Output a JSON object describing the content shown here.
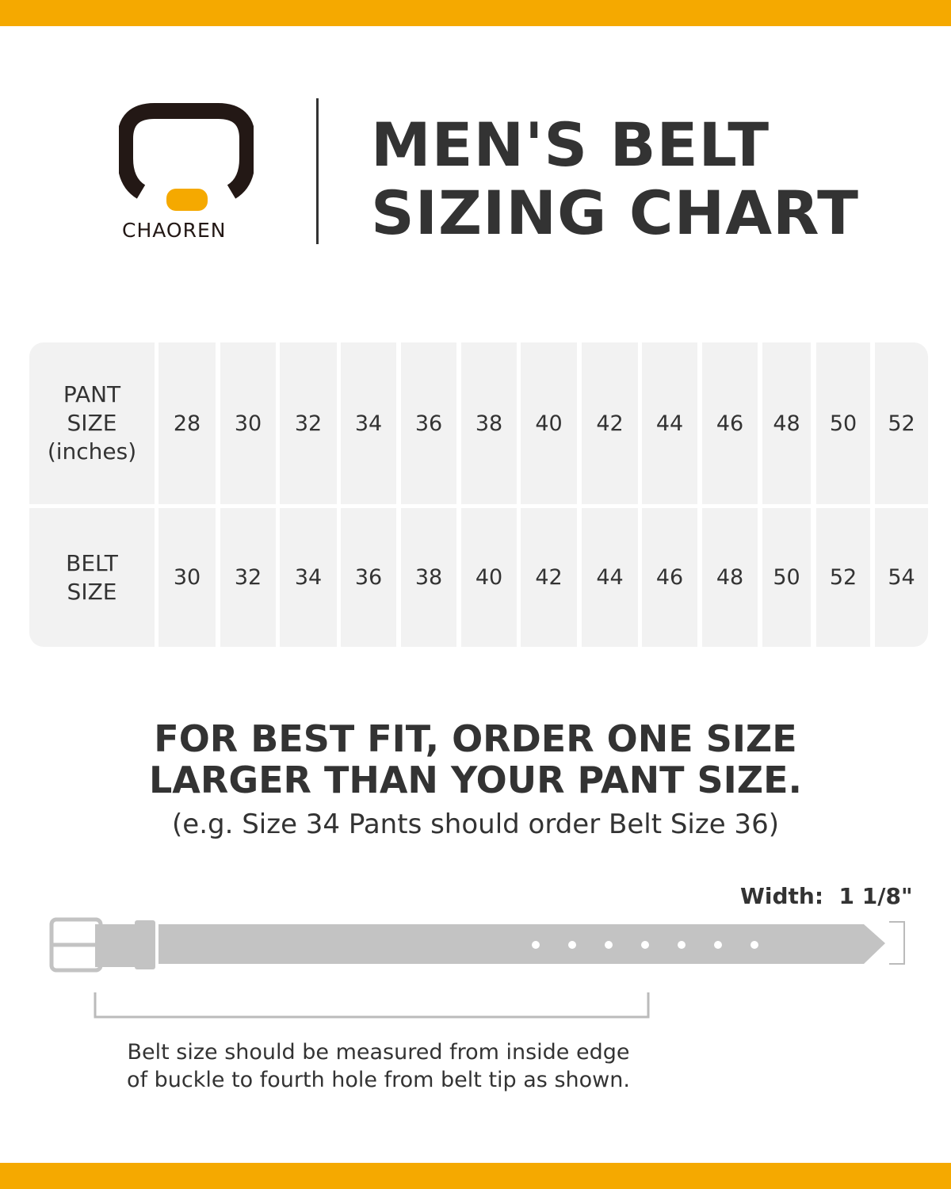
{
  "brand": {
    "name": "CHAOREN",
    "accent_color": "#f5a900",
    "ring_color": "#231815"
  },
  "title": {
    "line1": "MEN'S BELT",
    "line2": "SIZING CHART"
  },
  "table": {
    "rows": [
      {
        "header": [
          "PANT",
          "SIZE",
          "(inches)"
        ],
        "values": [
          "28",
          "30",
          "32",
          "34",
          "36",
          "38",
          "40",
          "42",
          "44",
          "46",
          "48",
          "50",
          "52"
        ]
      },
      {
        "header": [
          "BELT",
          "SIZE"
        ],
        "values": [
          "30",
          "32",
          "34",
          "36",
          "38",
          "40",
          "42",
          "44",
          "46",
          "48",
          "50",
          "52",
          "54"
        ]
      }
    ]
  },
  "tip": {
    "line1": "FOR BEST FIT, ORDER ONE SIZE",
    "line2": "LARGER THAN YOUR PANT SIZE.",
    "example": "(e.g. Size 34 Pants should order Belt Size 36)"
  },
  "belt": {
    "width_label": "Width:",
    "width_value": "1 1/8\""
  },
  "measure_note": {
    "line1": "Belt size should be measured from inside edge",
    "line2": "of buckle to fourth hole from belt tip as shown."
  }
}
